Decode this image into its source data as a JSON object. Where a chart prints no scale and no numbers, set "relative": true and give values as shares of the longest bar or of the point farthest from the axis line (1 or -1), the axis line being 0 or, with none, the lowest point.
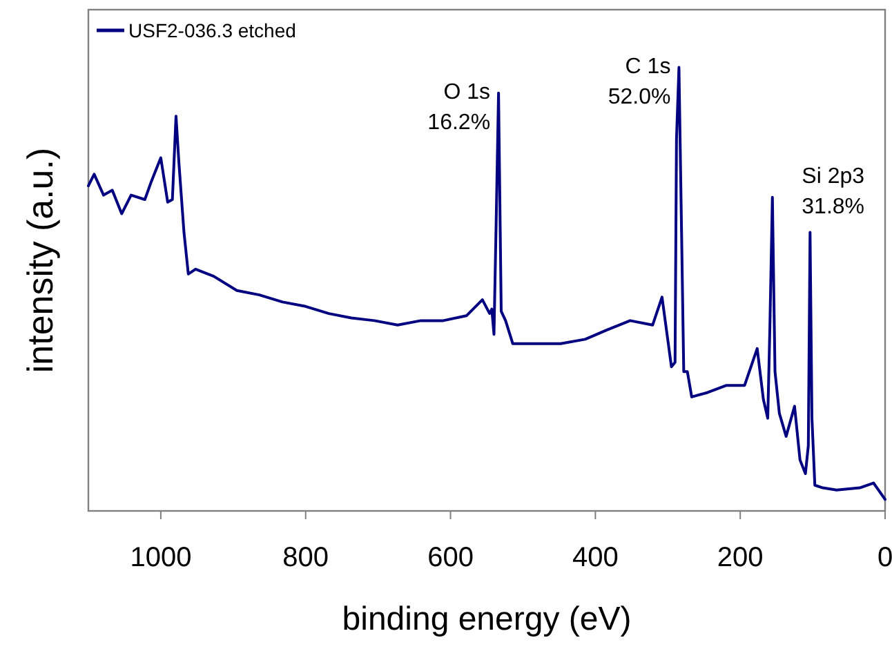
{
  "chart_data": {
    "type": "line",
    "xlabel": "binding energy (eV)",
    "ylabel": "intensity (a.u.)",
    "relative": true,
    "xlim": [
      1100,
      0
    ],
    "xticks": [
      1000,
      800,
      600,
      400,
      200,
      0
    ],
    "grid": false,
    "legend": "top left",
    "x": [
      1100,
      1092,
      1079,
      1067,
      1054,
      1041,
      1022,
      1013,
      1000,
      990.5,
      984,
      979,
      975,
      968,
      962,
      952,
      927,
      895,
      864,
      832,
      800,
      768,
      737,
      705,
      673,
      641,
      610,
      578,
      556,
      546,
      543,
      540,
      537,
      533.7,
      530,
      524,
      514,
      479,
      448,
      414,
      384,
      352,
      321,
      308,
      295,
      290,
      288,
      284.6,
      281,
      278,
      273,
      267,
      245,
      219,
      194,
      176.6,
      168,
      162,
      159,
      155.6,
      152,
      146,
      136.6,
      125,
      117.5,
      110,
      106,
      103.6,
      101,
      97,
      86,
      67,
      35,
      16,
      0
    ],
    "series": [
      {
        "name": "USF2-036.3 etched",
        "color": "#000080",
        "values": [
          0.733,
          0.759,
          0.712,
          0.723,
          0.67,
          0.712,
          0.702,
          0.743,
          0.796,
          0.696,
          0.702,
          0.89,
          0.785,
          0.628,
          0.534,
          0.545,
          0.529,
          0.497,
          0.487,
          0.471,
          0.461,
          0.445,
          0.435,
          0.429,
          0.419,
          0.429,
          0.429,
          0.44,
          0.476,
          0.445,
          0.455,
          0.398,
          0.649,
          0.942,
          0.45,
          0.429,
          0.377,
          0.377,
          0.377,
          0.387,
          0.408,
          0.429,
          0.419,
          0.482,
          0.325,
          0.335,
          0.838,
          1,
          0.628,
          0.314,
          0.314,
          0.257,
          0.267,
          0.283,
          0.283,
          0.366,
          0.251,
          0.209,
          0.419,
          0.707,
          0.314,
          0.22,
          0.168,
          0.236,
          0.115,
          0.084,
          0.147,
          0.628,
          0.209,
          0.058,
          0.052,
          0.047,
          0.052,
          0.063,
          0.026
        ]
      }
    ],
    "annotations": [
      {
        "text": "O 1s\n16.2%",
        "x": 533.7,
        "y": 0.942
      },
      {
        "text": "C 1s\n52.0%",
        "x": 284.6,
        "y": 1
      },
      {
        "text": "Si 2p3\n31.8%",
        "x": 103.6,
        "y": 0.628
      }
    ]
  }
}
